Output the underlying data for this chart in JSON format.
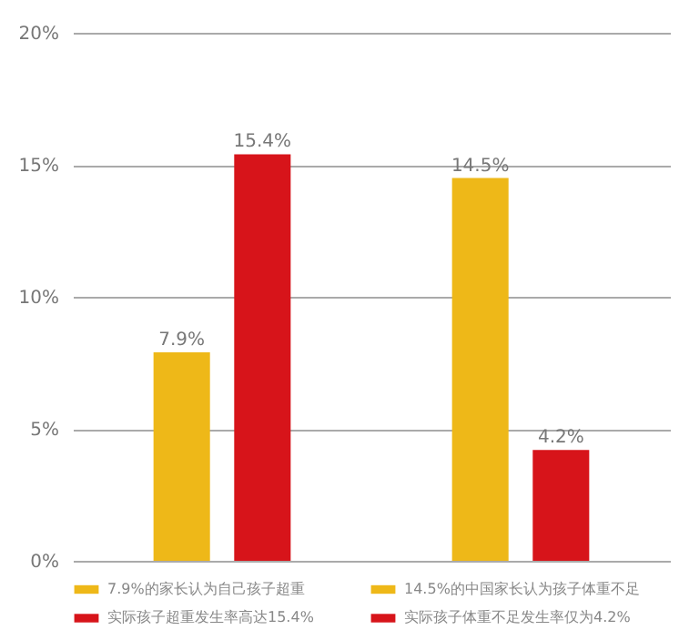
{
  "chart_data": {
    "type": "bar",
    "categories": [
      null,
      null
    ],
    "series": [
      {
        "name": "7.9%的家长认为自己孩子超重",
        "color": "#eeb818",
        "values": [
          7.9,
          null
        ],
        "value_labels": [
          "7.9%",
          null
        ]
      },
      {
        "name": "14.5%的中国家长认为孩子体重不足",
        "color": "#eeb818",
        "values": [
          null,
          14.5
        ],
        "value_labels": [
          null,
          "14.5%"
        ]
      },
      {
        "name": "实际孩子超重发生率高达15.4%",
        "color": "#d7141a",
        "values": [
          15.4,
          null
        ],
        "value_labels": [
          "15.4%",
          null
        ]
      },
      {
        "name": "实际孩子体重不足发生率仅为4.2%",
        "color": "#d7141a",
        "values": [
          null,
          4.2
        ],
        "value_labels": [
          null,
          "4.2%"
        ]
      }
    ],
    "ylim": [
      0,
      20
    ],
    "yticks": [
      {
        "value": 0,
        "label": "0%"
      },
      {
        "value": 5,
        "label": "5%"
      },
      {
        "value": 10,
        "label": "10%"
      },
      {
        "value": 15,
        "label": "15%"
      },
      {
        "value": 20,
        "label": "20%"
      }
    ],
    "grid": "y",
    "legend": "bottom",
    "tick_labels": "y"
  }
}
